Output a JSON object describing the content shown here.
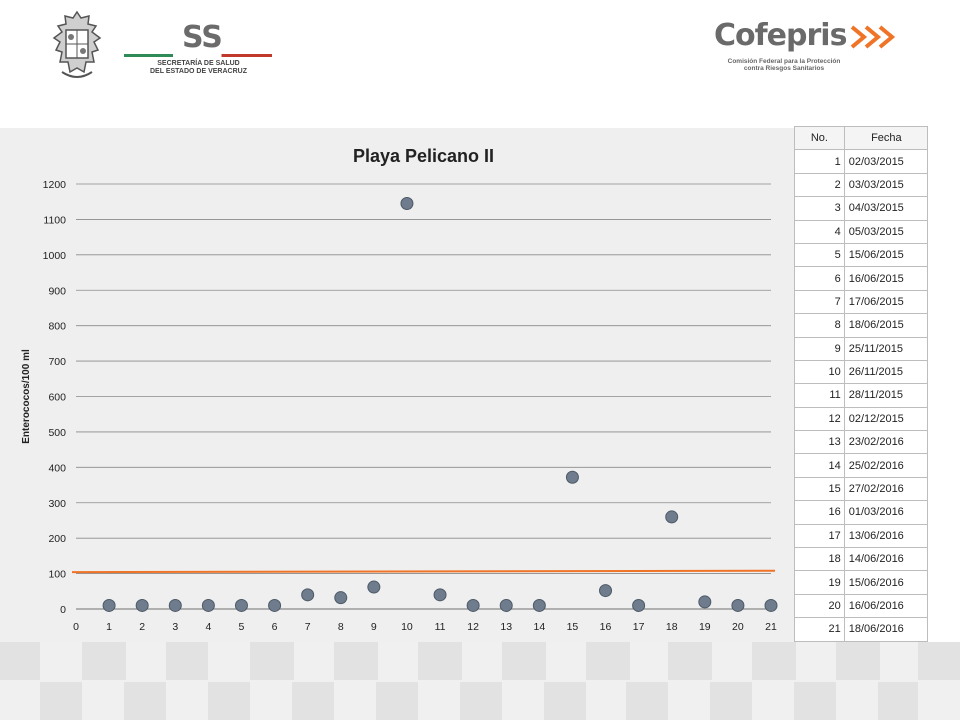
{
  "header": {
    "ss_letters": "SS",
    "ss_line1": "SECRETARÍA DE SALUD",
    "ss_line2": "DEL ESTADO DE VERACRUZ",
    "cofepris_name": "Cofepris",
    "cofepris_line1": "Comisión Federal para la Protección",
    "cofepris_line2": "contra Riesgos Sanitarios"
  },
  "colors": {
    "marker": "#6e7c8d",
    "marker_stroke": "#4d5966",
    "threshold": "#f07427",
    "grid": "#8a8a8a",
    "panel": "#efefef"
  },
  "chart_data": {
    "type": "scatter",
    "title": "Playa Pelicano II",
    "ylabel": "Enterococos/100 ml",
    "xlabel": "",
    "xlim": [
      0,
      21
    ],
    "ylim": [
      0,
      1200
    ],
    "x_ticks": [
      0,
      1,
      2,
      3,
      4,
      5,
      6,
      7,
      8,
      9,
      10,
      11,
      12,
      13,
      14,
      15,
      16,
      17,
      18,
      19,
      20,
      21
    ],
    "y_ticks": [
      0,
      100,
      200,
      300,
      400,
      500,
      600,
      700,
      800,
      900,
      1000,
      1100,
      1200
    ],
    "grid": "horizontal",
    "series": [
      {
        "x": [
          1,
          2,
          3,
          4,
          5,
          6,
          7,
          8,
          9,
          10,
          11,
          12,
          13,
          14,
          15,
          16,
          17,
          18,
          19,
          20,
          21
        ],
        "y": [
          10,
          10,
          10,
          10,
          10,
          10,
          40,
          32,
          62,
          1145,
          40,
          10,
          10,
          10,
          372,
          52,
          10,
          260,
          20,
          10,
          10
        ]
      }
    ],
    "threshold": {
      "y_start": 104,
      "y_end": 108
    }
  },
  "table": {
    "headers": [
      "No.",
      "Fecha"
    ],
    "rows": [
      [
        "1",
        "02/03/2015"
      ],
      [
        "2",
        "03/03/2015"
      ],
      [
        "3",
        "04/03/2015"
      ],
      [
        "4",
        "05/03/2015"
      ],
      [
        "5",
        "15/06/2015"
      ],
      [
        "6",
        "16/06/2015"
      ],
      [
        "7",
        "17/06/2015"
      ],
      [
        "8",
        "18/06/2015"
      ],
      [
        "9",
        "25/11/2015"
      ],
      [
        "10",
        "26/11/2015"
      ],
      [
        "11",
        "28/11/2015"
      ],
      [
        "12",
        "02/12/2015"
      ],
      [
        "13",
        "23/02/2016"
      ],
      [
        "14",
        "25/02/2016"
      ],
      [
        "15",
        "27/02/2016"
      ],
      [
        "16",
        "01/03/2016"
      ],
      [
        "17",
        "13/06/2016"
      ],
      [
        "18",
        "14/06/2016"
      ],
      [
        "19",
        "15/06/2016"
      ],
      [
        "20",
        "16/06/2016"
      ],
      [
        "21",
        "18/06/2016"
      ]
    ]
  }
}
